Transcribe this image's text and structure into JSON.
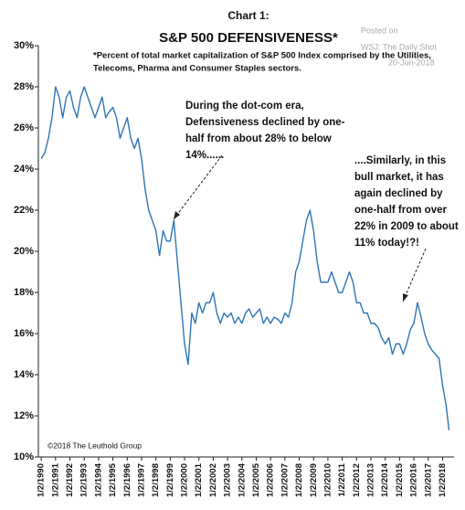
{
  "chart_data": {
    "type": "line",
    "chart_label": "Chart 1:",
    "title": "S&P 500 DEFENSIVENESS*",
    "note": [
      "*Percent of total market capitalization of S&P 500 Index comprised by the Utilities,",
      "Telecoms, Pharma and Consumer Staples sectors."
    ],
    "annotation_1": [
      "During the dot-com era,",
      "Defensiveness declined by one-",
      "half from about 28% to below",
      "14%......"
    ],
    "annotation_2": [
      "....Similarly, in this",
      "bull market, it has",
      "again declined by",
      "one-half from over",
      "22% in 2009 to about",
      "11% today!?!"
    ],
    "source": "©2018 The Leuthold Group",
    "watermark": [
      "Posted on",
      "WSJ: The Daily Shot",
      "20-Jun-2018"
    ],
    "color": "#2e75b6",
    "grid": false,
    "x": [
      1990,
      1990.25,
      1990.5,
      1990.75,
      1991,
      1991.25,
      1991.5,
      1991.75,
      1992,
      1992.25,
      1992.5,
      1992.75,
      1993,
      1993.25,
      1993.5,
      1993.75,
      1994,
      1994.25,
      1994.5,
      1994.75,
      1995,
      1995.25,
      1995.5,
      1995.75,
      1996,
      1996.25,
      1996.5,
      1996.75,
      1997,
      1997.25,
      1997.5,
      1997.75,
      1998,
      1998.25,
      1998.5,
      1998.75,
      1999,
      1999.25,
      1999.5,
      1999.75,
      2000,
      2000.25,
      2000.5,
      2000.75,
      2001,
      2001.25,
      2001.5,
      2001.75,
      2002,
      2002.25,
      2002.5,
      2002.75,
      2003,
      2003.25,
      2003.5,
      2003.75,
      2004,
      2004.25,
      2004.5,
      2004.75,
      2005,
      2005.25,
      2005.5,
      2005.75,
      2006,
      2006.25,
      2006.5,
      2006.75,
      2007,
      2007.25,
      2007.5,
      2007.75,
      2008,
      2008.25,
      2008.5,
      2008.75,
      2009,
      2009.25,
      2009.5,
      2009.75,
      2010,
      2010.25,
      2010.5,
      2010.75,
      2011,
      2011.25,
      2011.5,
      2011.75,
      2012,
      2012.25,
      2012.5,
      2012.75,
      2013,
      2013.25,
      2013.5,
      2013.75,
      2014,
      2014.25,
      2014.5,
      2014.75,
      2015,
      2015.25,
      2015.5,
      2015.75,
      2016,
      2016.25,
      2016.5,
      2016.75,
      2017,
      2017.25,
      2017.5,
      2017.75,
      2018,
      2018.25,
      2018.45
    ],
    "values": [
      24.5,
      24.8,
      25.5,
      26.5,
      28,
      27.5,
      26.5,
      27.5,
      27.8,
      27,
      26.5,
      27.5,
      28,
      27.5,
      27,
      26.5,
      27,
      27.5,
      26.5,
      26.8,
      27,
      26.5,
      25.5,
      26,
      26.5,
      25.5,
      25,
      25.5,
      24.5,
      23,
      22,
      21.5,
      21,
      19.8,
      21,
      20.5,
      20.5,
      21.5,
      19.5,
      17.5,
      15.5,
      14.5,
      17,
      16.5,
      17.5,
      17,
      17.5,
      17.5,
      18,
      17,
      16.5,
      17,
      16.8,
      17,
      16.5,
      16.8,
      16.5,
      17,
      17.2,
      16.8,
      17,
      17.2,
      16.5,
      16.8,
      16.5,
      16.8,
      16.7,
      16.5,
      17,
      16.8,
      17.5,
      19,
      19.5,
      20.5,
      21.5,
      22,
      21,
      19.5,
      18.5,
      18.5,
      18.5,
      19,
      18.5,
      18,
      18,
      18.5,
      19,
      18.5,
      17.5,
      17.5,
      17,
      17,
      16.5,
      16.5,
      16.3,
      15.8,
      15.5,
      15.8,
      15,
      15.5,
      15.5,
      15,
      15.5,
      16.2,
      16.5,
      17.5,
      16.8,
      16,
      15.5,
      15.2,
      15,
      14.8,
      13.5,
      12.5,
      11.3
    ],
    "xlim": [
      1989.8,
      2018.8
    ],
    "xticks": [
      {
        "value": 1990,
        "label": "1/2/1990"
      },
      {
        "value": 1991,
        "label": "1/2/1991"
      },
      {
        "value": 1992,
        "label": "1/2/1992"
      },
      {
        "value": 1993,
        "label": "1/2/1993"
      },
      {
        "value": 1994,
        "label": "1/2/1994"
      },
      {
        "value": 1995,
        "label": "1/2/1995"
      },
      {
        "value": 1996,
        "label": "1/2/1996"
      },
      {
        "value": 1997,
        "label": "1/2/1997"
      },
      {
        "value": 1998,
        "label": "1/2/1998"
      },
      {
        "value": 1999,
        "label": "1/2/1999"
      },
      {
        "value": 2000,
        "label": "1/2/2000"
      },
      {
        "value": 2001,
        "label": "1/2/2001"
      },
      {
        "value": 2002,
        "label": "1/2/2002"
      },
      {
        "value": 2003,
        "label": "1/2/2003"
      },
      {
        "value": 2004,
        "label": "1/2/2004"
      },
      {
        "value": 2005,
        "label": "1/2/2005"
      },
      {
        "value": 2006,
        "label": "1/2/2006"
      },
      {
        "value": 2007,
        "label": "1/2/2007"
      },
      {
        "value": 2008,
        "label": "1/2/2008"
      },
      {
        "value": 2009,
        "label": "1/2/2009"
      },
      {
        "value": 2010,
        "label": "1/2/2010"
      },
      {
        "value": 2011,
        "label": "1/2/2011"
      },
      {
        "value": 2012,
        "label": "1/2/2012"
      },
      {
        "value": 2013,
        "label": "1/2/2013"
      },
      {
        "value": 2014,
        "label": "1/2/2014"
      },
      {
        "value": 2015,
        "label": "1/2/2015"
      },
      {
        "value": 2016,
        "label": "1/2/2016"
      },
      {
        "value": 2017,
        "label": "1/2/2017"
      },
      {
        "value": 2018,
        "label": "1/2/2018"
      }
    ],
    "ylim": [
      10,
      30
    ],
    "yticks": [
      {
        "value": 10,
        "label": "10%"
      },
      {
        "value": 12,
        "label": "12%"
      },
      {
        "value": 14,
        "label": "14%"
      },
      {
        "value": 16,
        "label": "16%"
      },
      {
        "value": 18,
        "label": "18%"
      },
      {
        "value": 20,
        "label": "20%"
      },
      {
        "value": 22,
        "label": "22%"
      },
      {
        "value": 24,
        "label": "24%"
      },
      {
        "value": 26,
        "label": "26%"
      },
      {
        "value": 28,
        "label": "28%"
      },
      {
        "value": 30,
        "label": "30%"
      }
    ]
  }
}
